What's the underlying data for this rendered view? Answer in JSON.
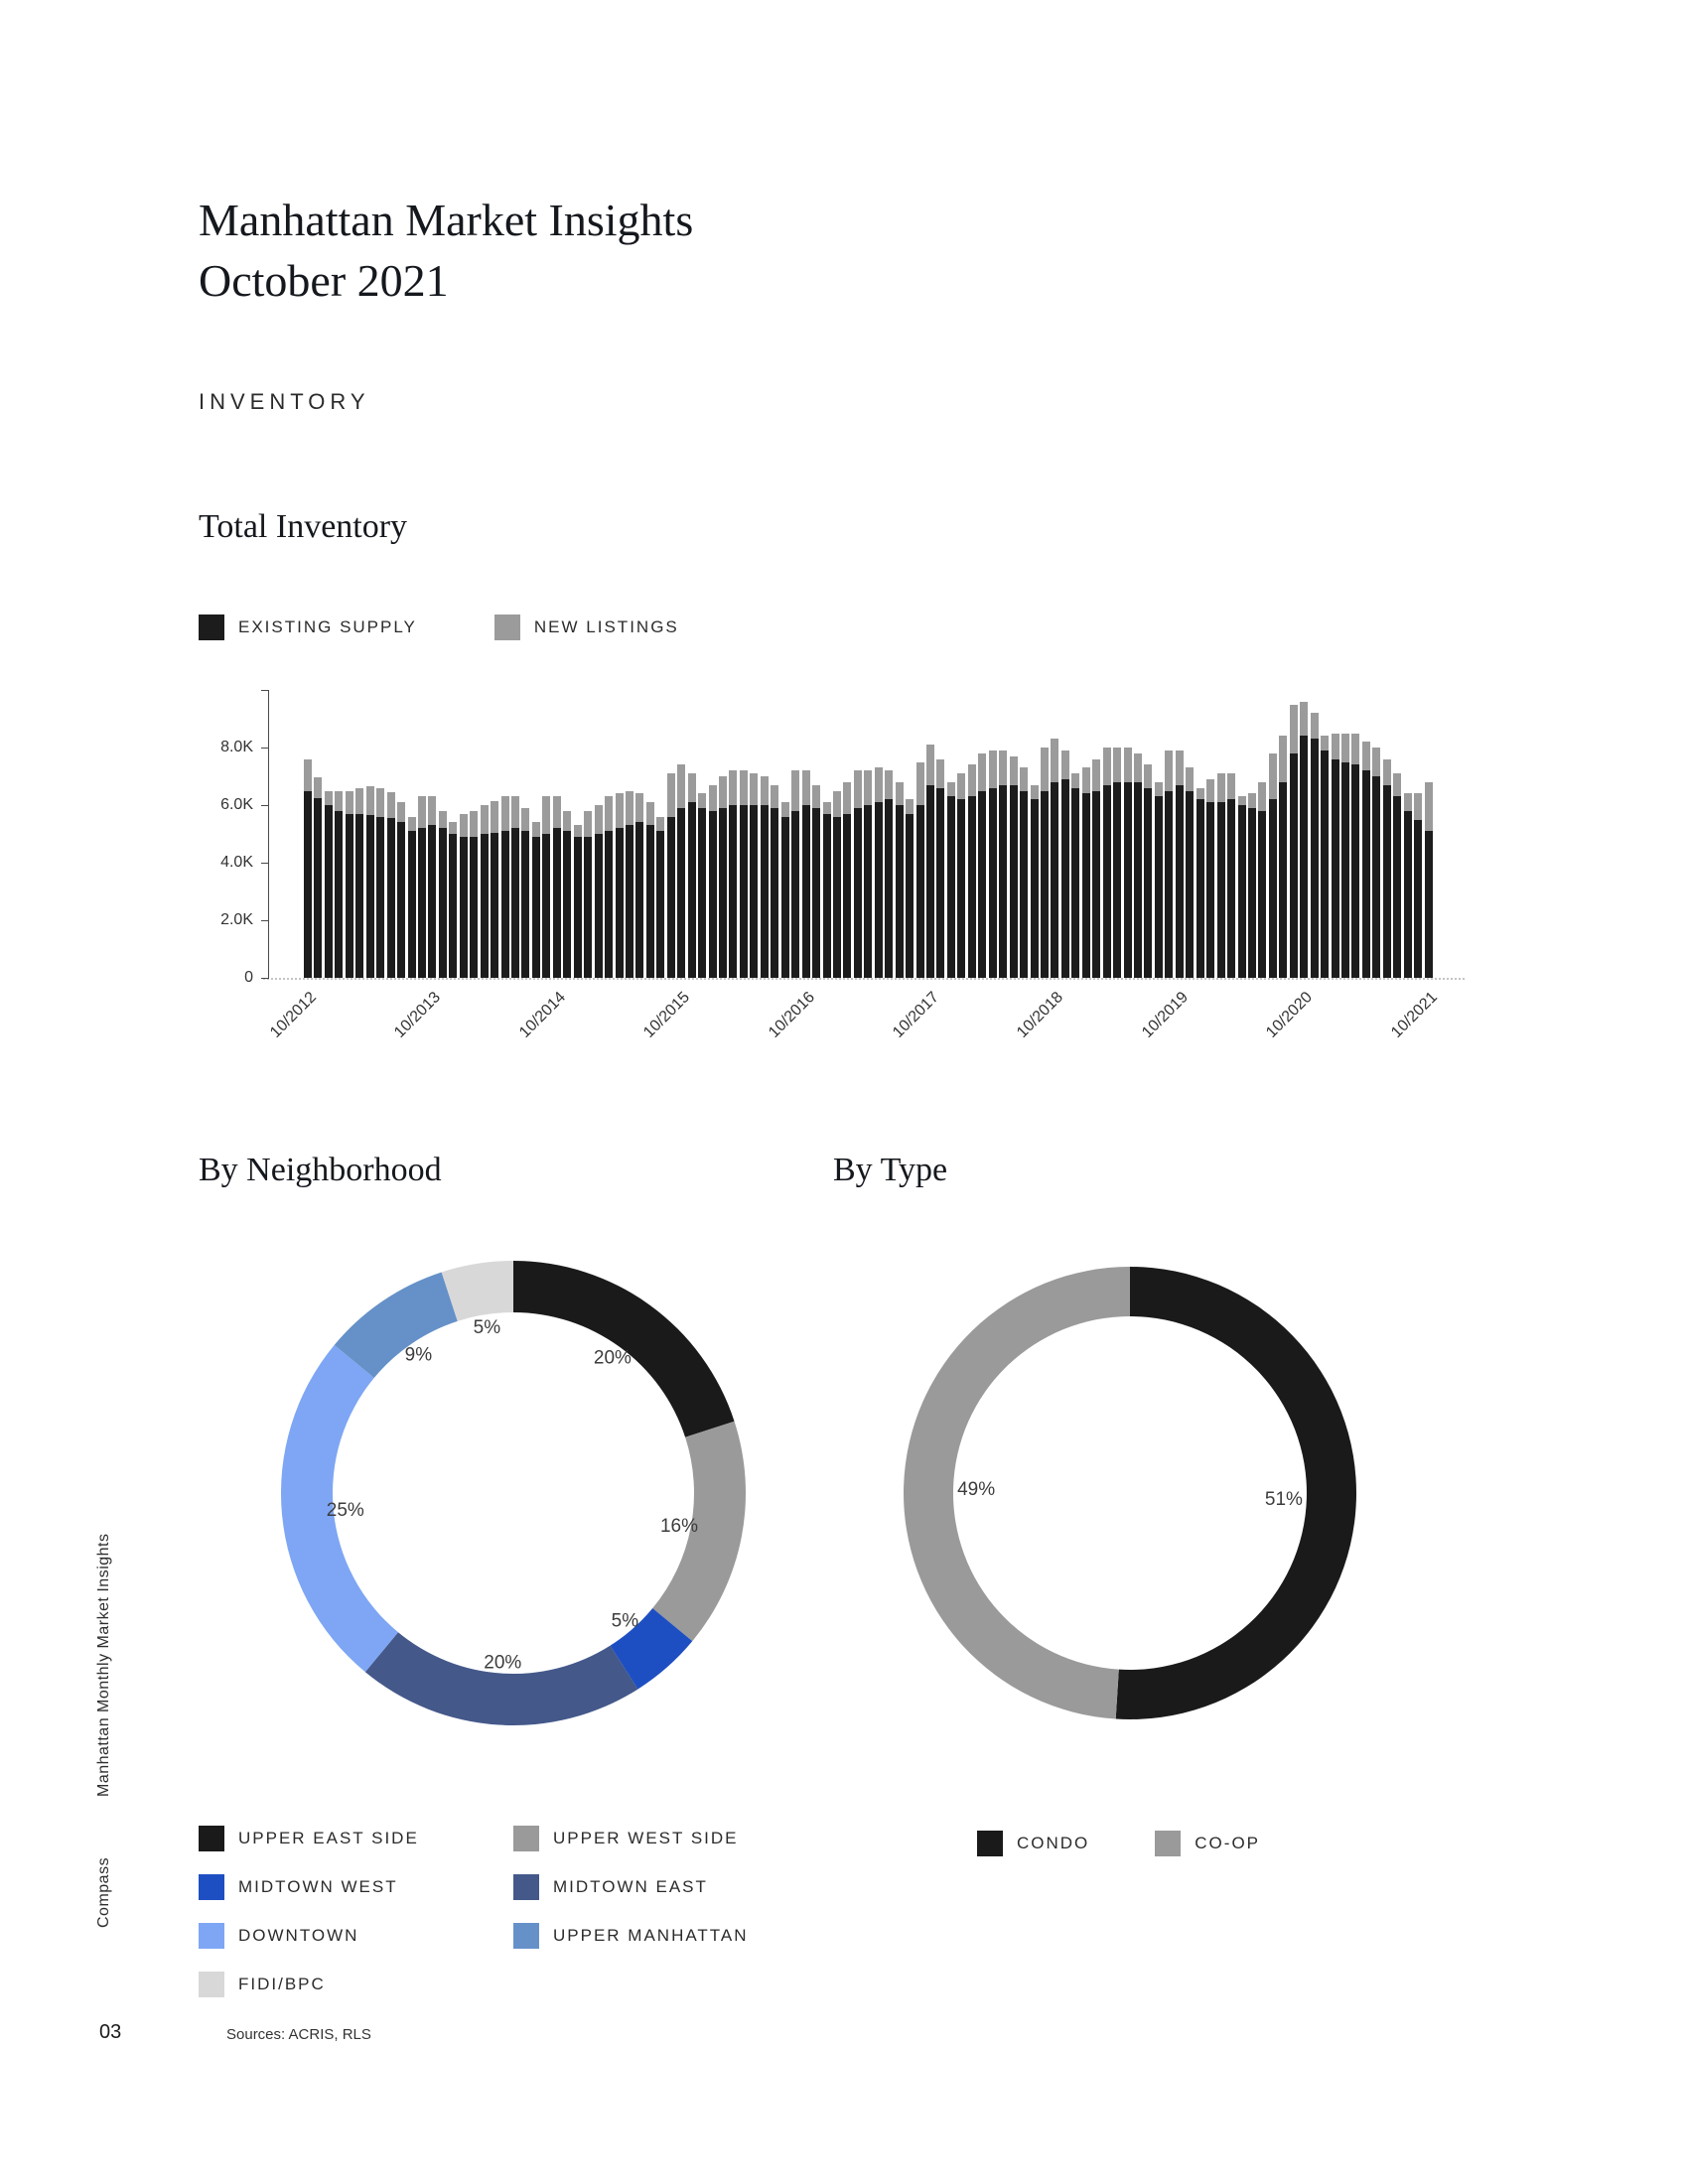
{
  "page": {
    "title_line1": "Manhattan Market Insights",
    "title_line2": "October 2021",
    "section_label": "INVENTORY",
    "sidebar_text": "Manhattan Monthly Market Insights",
    "brand": "Compass",
    "page_number": "03",
    "sources": "Sources: ACRIS, RLS"
  },
  "chart_data": [
    {
      "type": "bar",
      "title": "Total Inventory",
      "stacked": true,
      "y_max": 10000,
      "y_ticks": [
        "0",
        "2.0K",
        "4.0K",
        "6.0K",
        "8.0K"
      ],
      "x_tick_labels": [
        "10/2012",
        "10/2013",
        "10/2014",
        "10/2015",
        "10/2016",
        "10/2017",
        "10/2018",
        "10/2019",
        "10/2020",
        "10/2021"
      ],
      "x_tick_indices": [
        0,
        12,
        24,
        36,
        48,
        60,
        72,
        84,
        96,
        108
      ],
      "series": [
        {
          "name": "EXISTING SUPPLY",
          "color": "#1c1c1c",
          "values": [
            6500,
            6250,
            6000,
            5800,
            5700,
            5700,
            5650,
            5600,
            5550,
            5400,
            5100,
            5200,
            5300,
            5200,
            5000,
            4900,
            4900,
            5000,
            5050,
            5100,
            5200,
            5100,
            4900,
            5000,
            5200,
            5100,
            4900,
            4900,
            5000,
            5100,
            5200,
            5300,
            5400,
            5300,
            5100,
            5600,
            5900,
            6100,
            5900,
            5800,
            5900,
            6000,
            6000,
            6000,
            6000,
            5900,
            5600,
            5800,
            6000,
            5900,
            5700,
            5600,
            5700,
            5900,
            6000,
            6100,
            6200,
            6000,
            5700,
            6000,
            6700,
            6600,
            6300,
            6200,
            6300,
            6500,
            6600,
            6700,
            6700,
            6500,
            6200,
            6500,
            6800,
            6900,
            6600,
            6400,
            6500,
            6700,
            6800,
            6800,
            6800,
            6600,
            6300,
            6500,
            6700,
            6500,
            6200,
            6100,
            6100,
            6200,
            6000,
            5900,
            5800,
            6200,
            6800,
            7800,
            8400,
            8300,
            7900,
            7600,
            7500,
            7400,
            7200,
            7000,
            6700,
            6300,
            5800,
            5500,
            5100
          ]
        },
        {
          "name": "NEW LISTINGS",
          "color": "#9b9b9b",
          "values": [
            1100,
            700,
            500,
            700,
            800,
            900,
            1000,
            1000,
            900,
            700,
            500,
            1100,
            1000,
            600,
            400,
            800,
            900,
            1000,
            1100,
            1200,
            1100,
            800,
            500,
            1300,
            1100,
            700,
            400,
            900,
            1000,
            1200,
            1200,
            1200,
            1000,
            800,
            500,
            1500,
            1500,
            1000,
            500,
            900,
            1100,
            1200,
            1200,
            1100,
            1000,
            800,
            500,
            1400,
            1200,
            800,
            400,
            900,
            1100,
            1300,
            1200,
            1200,
            1000,
            800,
            500,
            1500,
            1400,
            1000,
            500,
            900,
            1100,
            1300,
            1300,
            1200,
            1000,
            800,
            500,
            1500,
            1500,
            1000,
            500,
            900,
            1100,
            1300,
            1200,
            1200,
            1000,
            800,
            500,
            1400,
            1200,
            800,
            400,
            800,
            1000,
            900,
            300,
            500,
            1000,
            1600,
            1600,
            1700,
            1200,
            900,
            500,
            900,
            1000,
            1100,
            1000,
            1000,
            900,
            800,
            600,
            900,
            1700
          ]
        }
      ]
    },
    {
      "type": "pie",
      "title": "By Neighborhood",
      "donut": true,
      "start_angle_deg": 0,
      "clockwise": true,
      "segments": [
        {
          "label": "UPPER EAST SIDE",
          "value": 20,
          "color": "#1a1a1a"
        },
        {
          "label": "UPPER WEST SIDE",
          "value": 16,
          "color": "#9a9a9a"
        },
        {
          "label": "MIDTOWN WEST",
          "value": 5,
          "color": "#1e4fc2"
        },
        {
          "label": "MIDTOWN EAST",
          "value": 20,
          "color": "#44588a"
        },
        {
          "label": "DOWNTOWN",
          "value": 25,
          "color": "#7ea6f4"
        },
        {
          "label": "UPPER MANHATTAN",
          "value": 9,
          "color": "#6591c8"
        },
        {
          "label": "FIDI/BPC",
          "value": 5,
          "color": "#d8d8d8"
        }
      ]
    },
    {
      "type": "pie",
      "title": "By Type",
      "donut": true,
      "start_angle_deg": 0,
      "clockwise": true,
      "segments": [
        {
          "label": "CONDO",
          "value": 51,
          "color": "#1a1a1a"
        },
        {
          "label": "CO-OP",
          "value": 49,
          "color": "#9a9a9a"
        }
      ]
    }
  ]
}
